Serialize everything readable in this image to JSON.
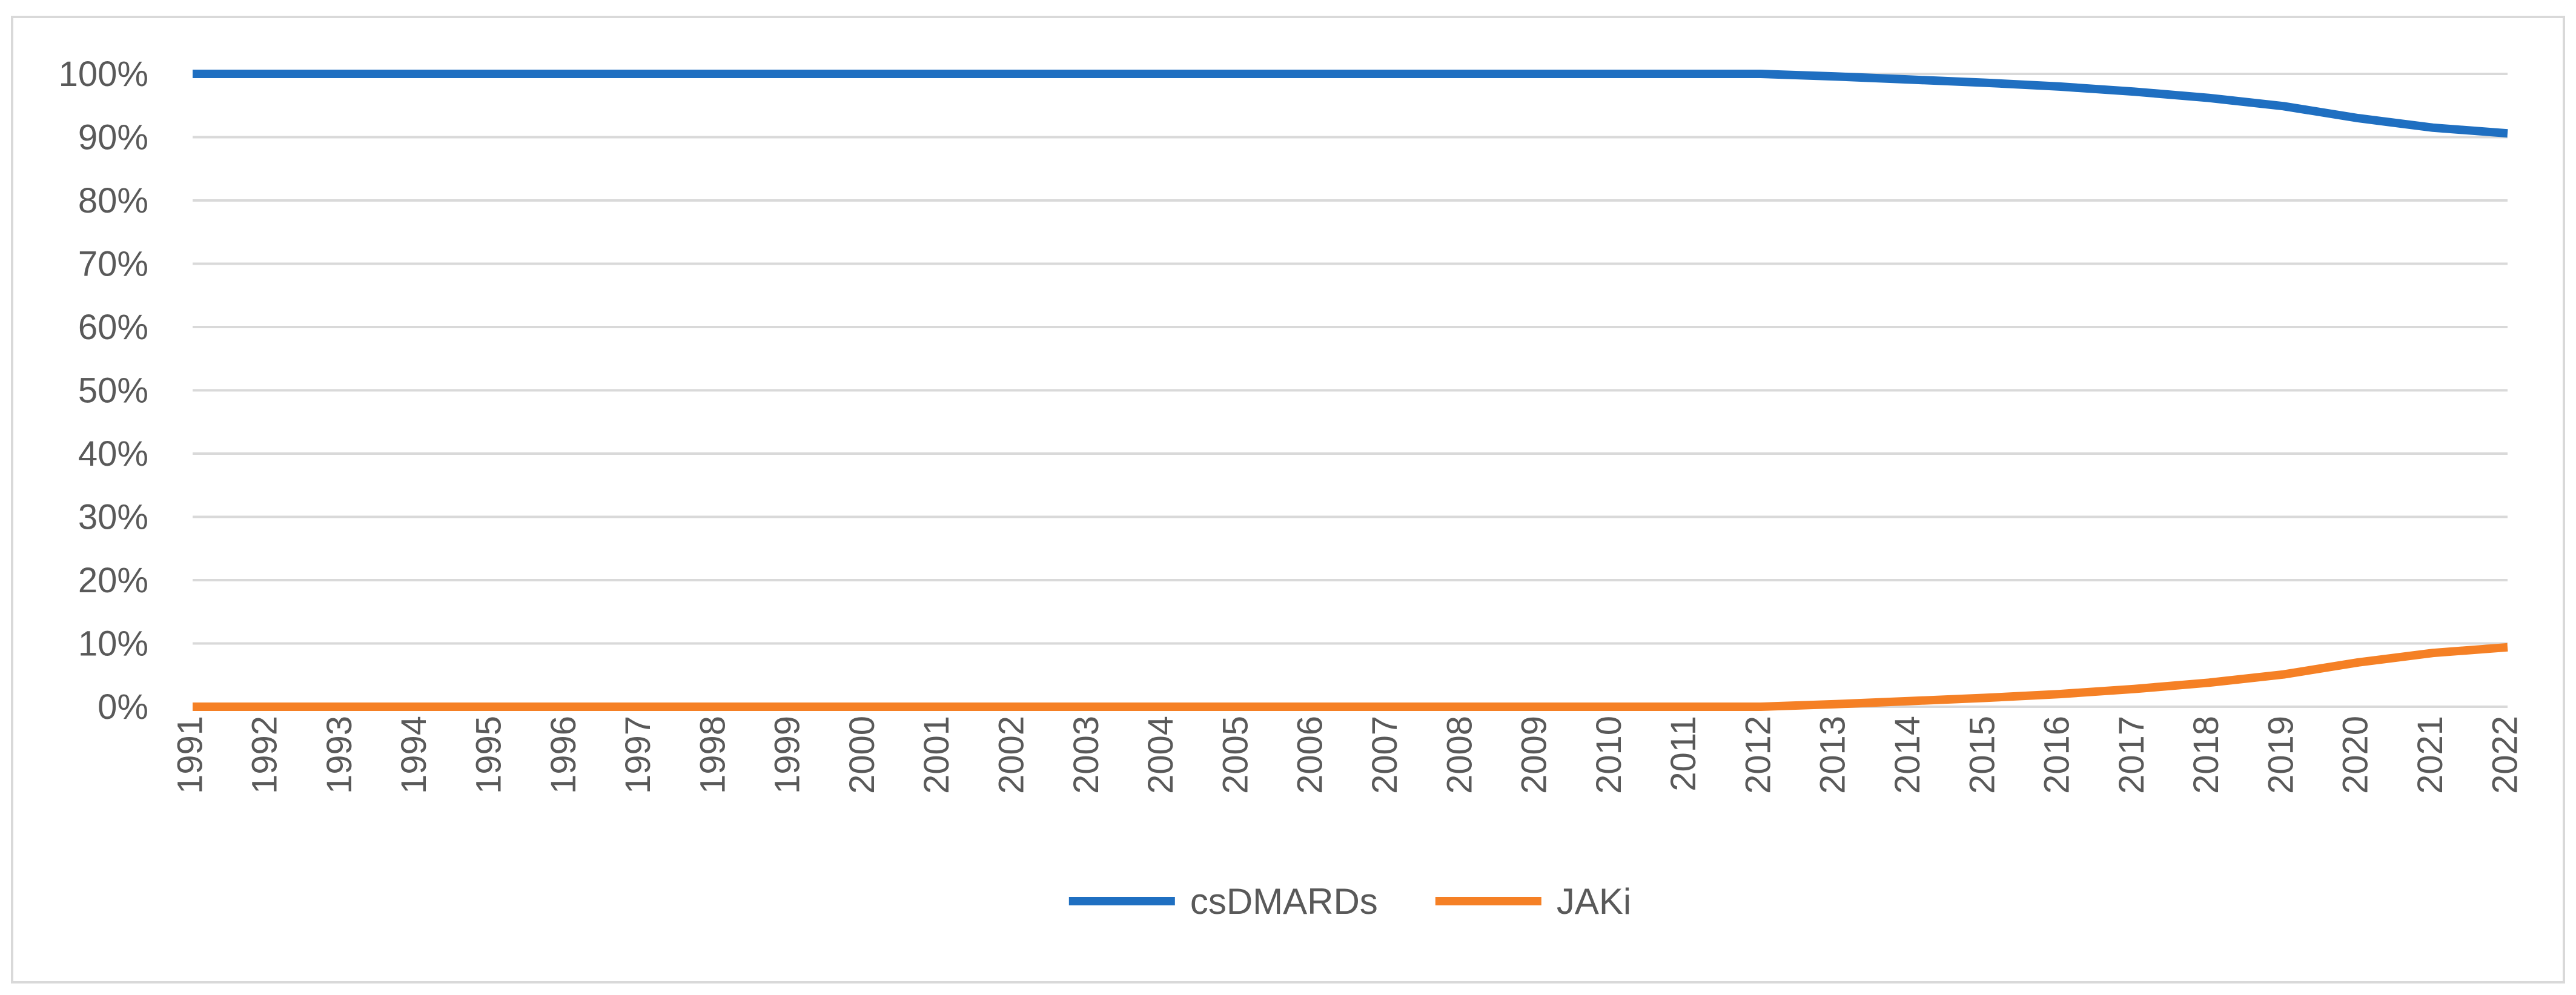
{
  "chart_data": {
    "type": "line",
    "title": "",
    "xlabel": "",
    "ylabel": "",
    "ylim": [
      0,
      100
    ],
    "ytick_step": 10,
    "ytick_suffix": "%",
    "grid": "horizontal",
    "legend_position": "bottom-center",
    "x": [
      "1991",
      "1992",
      "1993",
      "1994",
      "1995",
      "1996",
      "1997",
      "1998",
      "1999",
      "2000",
      "2001",
      "2002",
      "2003",
      "2004",
      "2005",
      "2006",
      "2007",
      "2008",
      "2009",
      "2010",
      "2011",
      "2012",
      "2013",
      "2014",
      "2015",
      "2016",
      "2017",
      "2018",
      "2019",
      "2020",
      "2021",
      "2022"
    ],
    "series": [
      {
        "name": "csDMARDs",
        "color": "#1f6fc1",
        "values": [
          100,
          100,
          100,
          100,
          100,
          100,
          100,
          100,
          100,
          100,
          100,
          100,
          100,
          100,
          100,
          100,
          100,
          100,
          100,
          100,
          100,
          100,
          99.6,
          99.1,
          98.6,
          98.0,
          97.2,
          96.2,
          94.9,
          93.0,
          91.5,
          90.6
        ]
      },
      {
        "name": "JAKi",
        "color": "#f58025",
        "values": [
          0,
          0,
          0,
          0,
          0,
          0,
          0,
          0,
          0,
          0,
          0,
          0,
          0,
          0,
          0,
          0,
          0,
          0,
          0,
          0,
          0,
          0,
          0.4,
          0.9,
          1.4,
          2.0,
          2.8,
          3.8,
          5.1,
          7.0,
          8.5,
          9.4
        ]
      }
    ]
  }
}
